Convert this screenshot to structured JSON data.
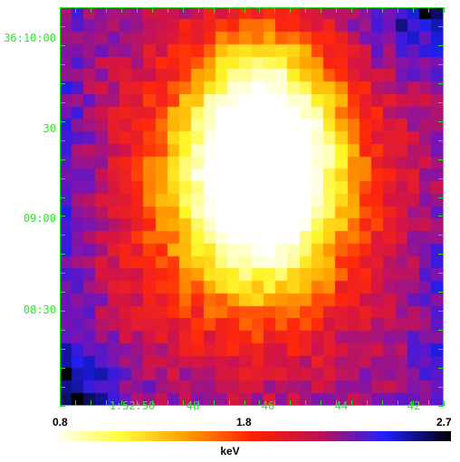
{
  "map": {
    "y_axis_labels": [
      "36:10:00",
      "30",
      "09:00",
      "08:30"
    ],
    "x_axis_labels": [
      "1:52:50",
      "48",
      "46",
      "44",
      "42"
    ],
    "axis_color": "#22ee22",
    "grid": "pixelated 32x32 temperature map",
    "peak_position": "upper-center",
    "low_regions": [
      "top-right",
      "bottom-left"
    ]
  },
  "colorbar": {
    "tick_labels": [
      "0.8",
      "1.8",
      "2.7"
    ],
    "unit": "keV",
    "range": [
      0.8,
      2.7
    ],
    "colors": [
      "#ffffff",
      "#ffff40",
      "#ffa000",
      "#ff2000",
      "#c01050",
      "#2020ff",
      "#000000"
    ]
  }
}
